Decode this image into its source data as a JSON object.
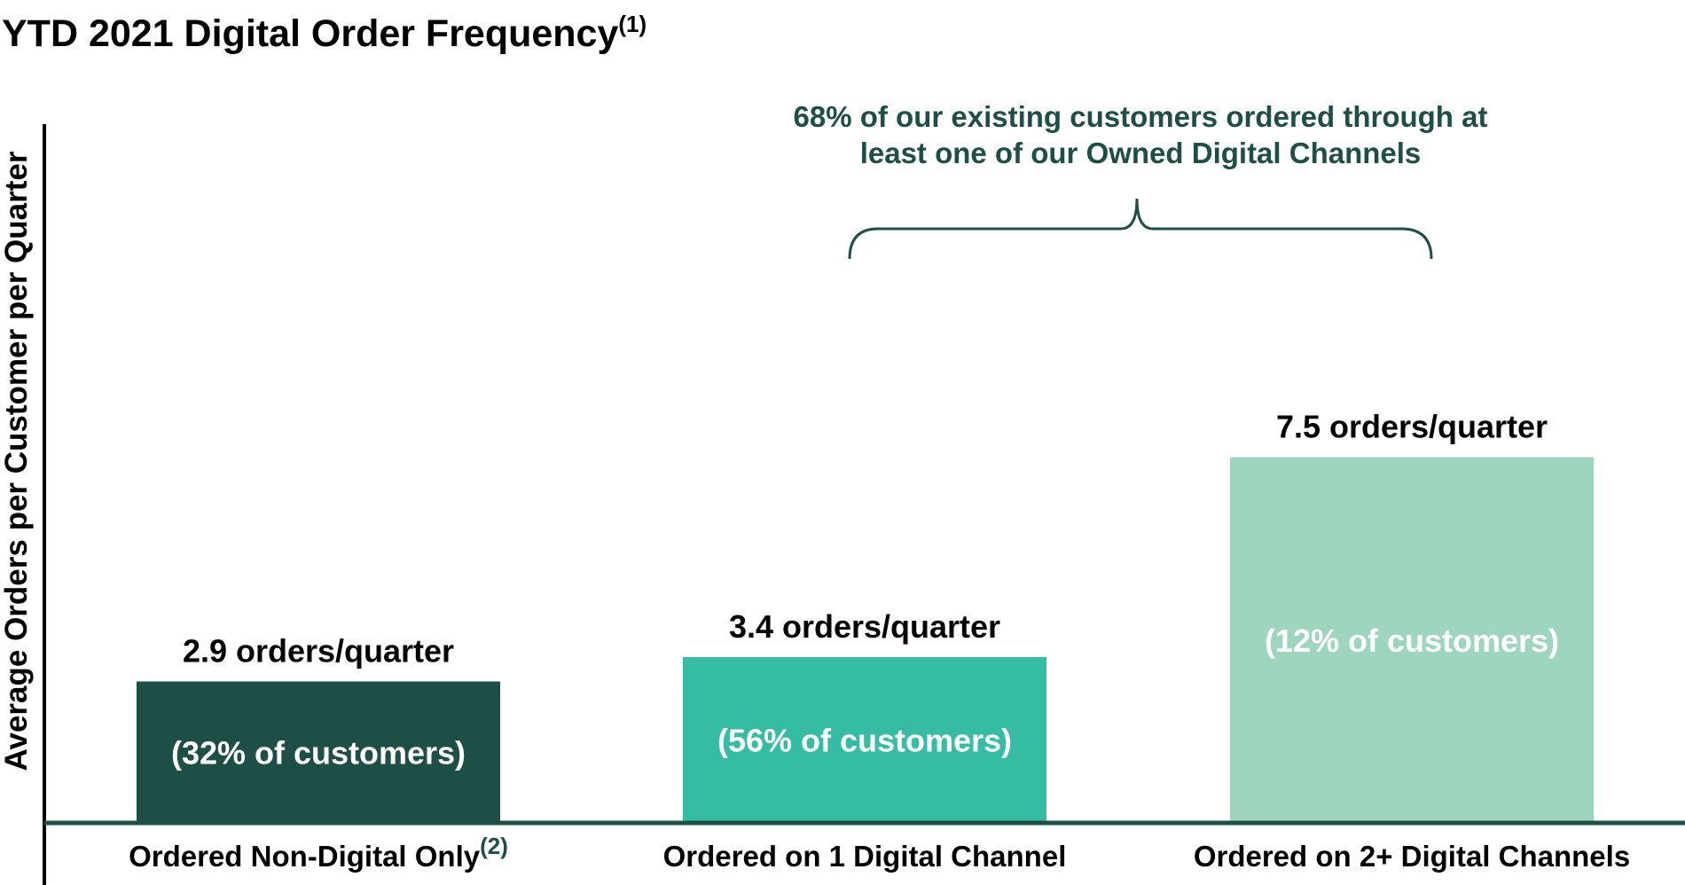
{
  "chart_data": {
    "type": "bar",
    "title": "YTD 2021 Digital Order Frequency",
    "title_footnote": "(1)",
    "xlabel": "",
    "ylabel": "Average Orders per Customer per Quarter",
    "ylim": [
      0,
      10
    ],
    "grid": false,
    "legend": "none",
    "categories": [
      {
        "label": "Ordered Non-Digital Only",
        "footnote": "(2)"
      },
      {
        "label": "Ordered on 1 Digital Channel",
        "footnote": ""
      },
      {
        "label": "Ordered on 2+ Digital Channels",
        "footnote": ""
      }
    ],
    "values": [
      2.9,
      3.4,
      7.5
    ],
    "value_labels": [
      "2.9 orders/quarter",
      "3.4 orders/quarter",
      "7.5 orders/quarter"
    ],
    "bar_inner_labels": [
      "(32% of customers)",
      "(56% of customers)",
      "(12% of customers)"
    ],
    "colors": [
      "#1d4f47",
      "#35bda3",
      "#9dd5be"
    ],
    "annotation": {
      "lines": [
        "68% of our existing customers ordered through at",
        "least one of our Owned Digital Channels"
      ],
      "spans_categories": [
        1,
        2
      ],
      "color": "#1d4f47"
    },
    "axis_color": "#000000",
    "baseline_color": "#1d4f47"
  }
}
